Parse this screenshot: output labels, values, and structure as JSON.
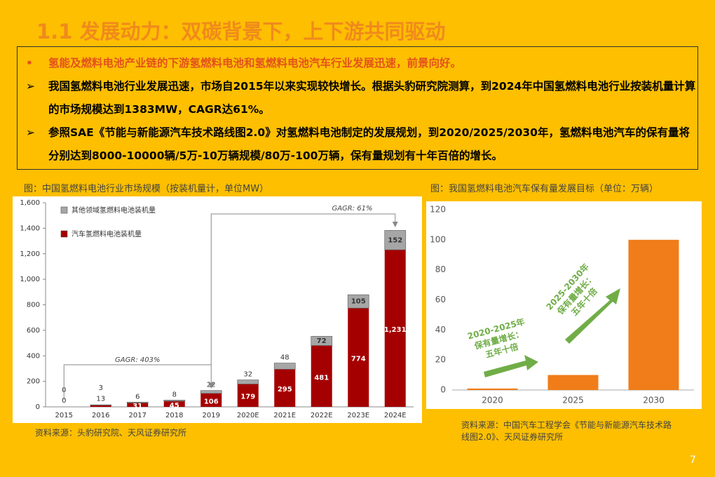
{
  "header": {
    "title": "1.1 发展动力：双碳背景下，上下游共同驱动"
  },
  "bullets": [
    "氢能及燃料电池产业链的下游氢燃料电池和氢燃料电池汽车行业发展迅速，前景向好。",
    "我国氢燃料电池行业发展迅速，市场自2015年以来实现较快增长。根据头豹研究院测算，到2024年中国氢燃料电池行业按装机量计算的市场规模达到1383MW，CAGR达61%。",
    "参照SAE《节能与新能源汽车技术路线图2.0》对氢燃料电池制定的发展规划，到2020/2025/2030年，氢燃料电池汽车的保有量将分别达到8000-10000辆/5万-10万辆规模/80万-100万辆，保有量规划有十年百倍的增长。"
  ],
  "chart_data": [
    {
      "type": "bar",
      "stacked": true,
      "title": "图：中国氢燃料电池行业市场规模（按装机量计，单位MW）",
      "categories": [
        "2015",
        "2016",
        "2017",
        "2018",
        "2019",
        "2020E",
        "2021E",
        "2022E",
        "2023E",
        "2024E"
      ],
      "series": [
        {
          "name": "汽车氢燃料电池装机量",
          "color": "#a50000",
          "values": [
            0,
            13,
            31,
            45,
            106,
            179,
            295,
            481,
            774,
            1231
          ],
          "value_labels": [
            "0",
            "13",
            "31",
            "45",
            "106",
            "179",
            "295",
            "481",
            "774",
            "1,231"
          ]
        },
        {
          "name": "其他领域氢燃料电池装机量",
          "color": "#a6a6a6",
          "values": [
            0,
            3,
            6,
            8,
            22,
            32,
            48,
            72,
            105,
            152
          ]
        }
      ],
      "ylim": [
        0,
        1600
      ],
      "yticks": [
        0,
        200,
        400,
        600,
        800,
        {
          "value": 1000,
          "label": "1,000"
        },
        {
          "value": 1200,
          "label": "1,200"
        },
        {
          "value": 1400,
          "label": "1,400"
        },
        {
          "value": 1600,
          "label": "1,600"
        }
      ],
      "annotations": [
        "GAGR: 403%",
        "GAGR: 61%"
      ],
      "source": "资料来源：头豹研究院、天风证券研究所"
    },
    {
      "type": "bar",
      "title": "图：我国氢燃料电池汽车保有量发展目标（单位：万辆）",
      "categories": [
        "2020",
        "2025",
        "2030"
      ],
      "values": [
        1,
        10,
        100
      ],
      "color": "#f07d1a",
      "ylim": [
        0,
        120
      ],
      "yticks": [
        0,
        20,
        40,
        60,
        80,
        100,
        120
      ],
      "annotations": [
        [
          "2020-2025年",
          "保有量增长：",
          "五年十倍"
        ],
        [
          "2025-2030年",
          "保有量增长：",
          "五年十倍"
        ]
      ],
      "source": "资料来源：中国汽车工程学会《节能与新能源汽车技术路线图2.0》、天风证券研究所"
    }
  ],
  "page_number": "7"
}
